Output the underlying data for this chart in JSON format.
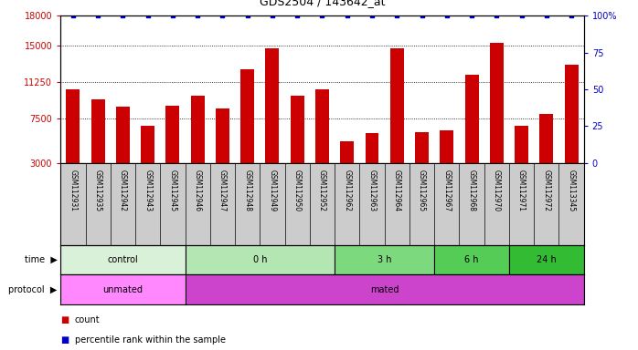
{
  "title": "GDS2504 / 143642_at",
  "samples": [
    "GSM112931",
    "GSM112935",
    "GSM112942",
    "GSM112943",
    "GSM112945",
    "GSM112946",
    "GSM112947",
    "GSM112948",
    "GSM112949",
    "GSM112950",
    "GSM112952",
    "GSM112962",
    "GSM112963",
    "GSM112964",
    "GSM112965",
    "GSM112967",
    "GSM112968",
    "GSM112970",
    "GSM112971",
    "GSM112972",
    "GSM113345"
  ],
  "counts": [
    10500,
    9500,
    8700,
    6800,
    8800,
    9800,
    8500,
    12500,
    14700,
    9800,
    10500,
    5200,
    6000,
    14700,
    6100,
    6300,
    12000,
    15200,
    6800,
    8000,
    13000
  ],
  "ylim_left": [
    3000,
    18000
  ],
  "yticks_left": [
    3000,
    7500,
    11250,
    15000,
    18000
  ],
  "ylim_right": [
    0,
    100
  ],
  "yticks_right": [
    0,
    25,
    50,
    75,
    100
  ],
  "bar_color": "#cc0000",
  "dot_color": "#0000cc",
  "time_groups": [
    {
      "label": "control",
      "start": 0,
      "end": 5,
      "color": "#d9f0d9"
    },
    {
      "label": "0 h",
      "start": 5,
      "end": 11,
      "color": "#b3e6b3"
    },
    {
      "label": "3 h",
      "start": 11,
      "end": 15,
      "color": "#7dd97d"
    },
    {
      "label": "6 h",
      "start": 15,
      "end": 18,
      "color": "#55cc55"
    },
    {
      "label": "24 h",
      "start": 18,
      "end": 21,
      "color": "#33bb33"
    }
  ],
  "protocol_groups": [
    {
      "label": "unmated",
      "start": 0,
      "end": 5,
      "color": "#ff88ff"
    },
    {
      "label": "mated",
      "start": 5,
      "end": 21,
      "color": "#cc44cc"
    }
  ],
  "xlabel_color": "#cc0000",
  "right_axis_color": "#0000cc",
  "xlabels_bg": "#cccccc"
}
